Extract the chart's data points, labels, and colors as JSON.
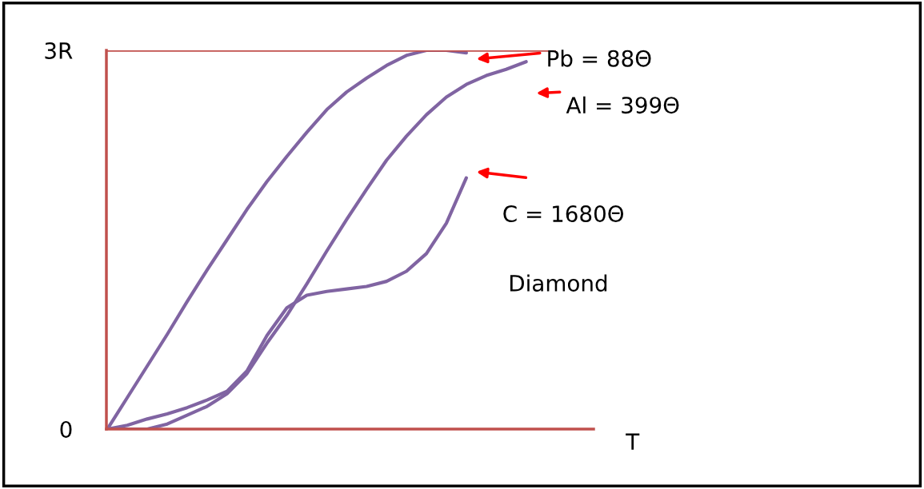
{
  "chart_data": {
    "type": "line",
    "xlabel": "T",
    "ylim": [
      0,
      3
    ],
    "yticks": [
      {
        "value": 0,
        "label": "0"
      },
      {
        "value": 3,
        "label": "3R"
      }
    ],
    "tick_labels": "y",
    "grid": false,
    "marker": "none",
    "line_style": "solid",
    "categories": [
      null,
      null,
      null,
      null,
      null,
      null,
      null,
      null,
      null,
      null,
      null,
      null,
      null,
      null,
      null,
      null,
      null,
      null,
      null,
      null,
      null,
      null,
      null,
      null,
      null
    ],
    "series": [
      {
        "color": "#8064a2",
        "values": [
          0,
          0.25,
          0.5,
          0.75,
          1.01,
          1.26,
          1.5,
          1.74,
          1.96,
          2.16,
          2.35,
          2.53,
          2.67,
          2.78,
          2.88,
          2.96,
          3.0,
          3.0,
          2.98,
          null,
          null,
          null,
          null,
          null,
          null
        ]
      },
      {
        "color": "#8064a2",
        "values": [
          0,
          0,
          0,
          0.04,
          0.11,
          0.18,
          0.28,
          0.44,
          0.68,
          0.9,
          1.15,
          1.41,
          1.66,
          1.9,
          2.13,
          2.32,
          2.49,
          2.63,
          2.73,
          2.8,
          2.85,
          2.91,
          null,
          null,
          null
        ]
      },
      {
        "color": "#8064a2",
        "values": [
          0,
          0.03,
          0.08,
          0.12,
          0.17,
          0.23,
          0.3,
          0.46,
          0.74,
          0.96,
          1.06,
          1.09,
          1.11,
          1.13,
          1.17,
          1.25,
          1.39,
          1.63,
          1.99,
          null,
          null,
          null,
          null,
          null,
          null
        ]
      }
    ],
    "ref_lines": [
      {
        "axis": "y",
        "value": 3,
        "color": "#c0504d",
        "line_style": "solid"
      }
    ],
    "annotations": [
      "Pb = 88Θ",
      "Al = 399Θ",
      "C = 1680Θ",
      "Diamond"
    ]
  }
}
